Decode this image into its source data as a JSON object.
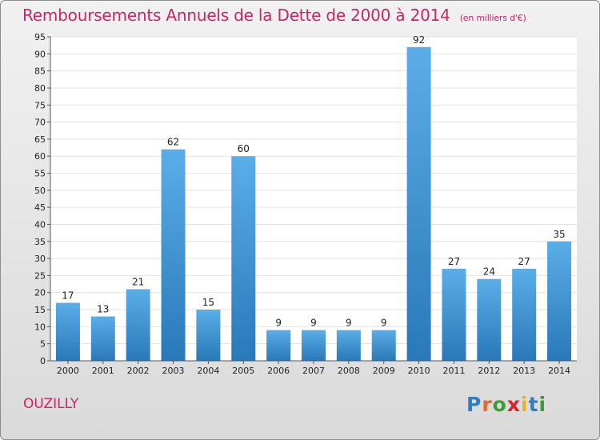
{
  "chart_data": {
    "type": "bar",
    "title": "Remboursements Annuels de la Dette de 2000 à 2014",
    "subtitle": "(en milliers d'€)",
    "categories": [
      "2000",
      "2001",
      "2002",
      "2003",
      "2004",
      "2005",
      "2006",
      "2007",
      "2008",
      "2009",
      "2010",
      "2011",
      "2012",
      "2013",
      "2014"
    ],
    "values": [
      17,
      13,
      21,
      62,
      15,
      60,
      9,
      9,
      9,
      9,
      92,
      27,
      24,
      27,
      35
    ],
    "ylim": [
      0,
      95
    ],
    "yticks": [
      0,
      5,
      10,
      15,
      20,
      25,
      30,
      35,
      40,
      45,
      50,
      55,
      60,
      65,
      70,
      75,
      80,
      85,
      90,
      95
    ],
    "grid": true,
    "xlabel": "",
    "ylabel": "",
    "bar_color_top": "#5aaee8",
    "bar_color_bottom": "#2a78b8"
  },
  "footer": {
    "commune": "OUZILLY",
    "brand": {
      "letters": [
        "P",
        "r",
        "o",
        "x",
        "i",
        "t",
        "i"
      ],
      "colors": [
        "#2e7fc1",
        "#e2692a",
        "#3a9d3a",
        "#d9232d",
        "#e2b324",
        "#2e7fc1",
        "#3a9d3a"
      ]
    }
  }
}
